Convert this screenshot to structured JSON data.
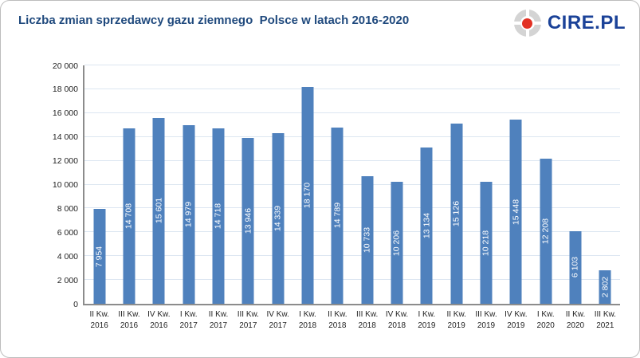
{
  "header": {
    "title": "Liczba zmian sprzedawcy gazu ziemnego  Polsce w latach 2016-2020",
    "logo": {
      "text": "CIRE.PL"
    }
  },
  "colors": {
    "bar": "#4F81BD",
    "gridline": "#DCE6F1",
    "axis": "#8C8C8C",
    "title_text": "#1F497D",
    "logo_blue": "#1B4298",
    "logo_red": "#E23124",
    "value_label": "#FFFFFF",
    "tick_label": "#1F1F1F"
  },
  "chart_data": {
    "type": "bar",
    "title": "Liczba zmian sprzedawcy gazu ziemnego  Polsce w latach 2016-2020",
    "xlabel": "",
    "ylabel": "",
    "ylim": [
      0,
      20000
    ],
    "ytick_step": 2000,
    "ytick_labels": [
      "0",
      "2 000",
      "4 000",
      "6 000",
      "8 000",
      "10 000",
      "12 000",
      "14 000",
      "16 000",
      "18 000",
      "20 000"
    ],
    "grid": true,
    "legend": "none",
    "categories": [
      {
        "quarter": "II Kw.",
        "year": "2016"
      },
      {
        "quarter": "III Kw.",
        "year": "2016"
      },
      {
        "quarter": "IV Kw.",
        "year": "2016"
      },
      {
        "quarter": "I Kw.",
        "year": "2017"
      },
      {
        "quarter": "II Kw.",
        "year": "2017"
      },
      {
        "quarter": "III Kw.",
        "year": "2017"
      },
      {
        "quarter": "IV Kw.",
        "year": "2017"
      },
      {
        "quarter": "I Kw.",
        "year": "2018"
      },
      {
        "quarter": "II Kw.",
        "year": "2018"
      },
      {
        "quarter": "III Kw.",
        "year": "2018"
      },
      {
        "quarter": "IV Kw.",
        "year": "2018"
      },
      {
        "quarter": "I Kw.",
        "year": "2019"
      },
      {
        "quarter": "II Kw.",
        "year": "2019"
      },
      {
        "quarter": "III Kw.",
        "year": "2019"
      },
      {
        "quarter": "IV Kw.",
        "year": "2019"
      },
      {
        "quarter": "I Kw.",
        "year": "2020"
      },
      {
        "quarter": "II Kw.",
        "year": "2020"
      },
      {
        "quarter": "III Kw.",
        "year": "2021"
      }
    ],
    "values": [
      7954,
      14708,
      15601,
      14979,
      14718,
      13946,
      14339,
      18170,
      14789,
      10733,
      10206,
      13134,
      15126,
      10218,
      15448,
      12208,
      6103,
      2802
    ],
    "value_labels": [
      "7 954",
      "14 708",
      "15 601",
      "14 979",
      "14 718",
      "13 946",
      "14 339",
      "18 170",
      "14 789",
      "10 733",
      "10 206",
      "13 134",
      "15 126",
      "10 218",
      "15 448",
      "12 208",
      "6 103",
      "2 802"
    ]
  }
}
